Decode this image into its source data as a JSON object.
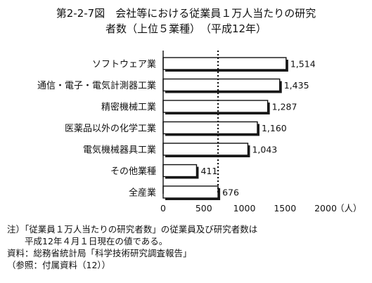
{
  "title_lines": [
    "第2-2-7図　会社等における従業員１万人当たりの研究",
    "者数（上位５業種）　（平成12年）"
  ],
  "chart_data": {
    "type": "bar",
    "orientation": "horizontal",
    "categories": [
      "ソフトウェア業",
      "通信・電子・電気計測器工業",
      "精密機械工業",
      "医薬品以外の化学工業",
      "電気機械器具工業",
      "その他業種",
      "全産業"
    ],
    "values": [
      1514,
      1435,
      1287,
      1160,
      1043,
      411,
      676
    ],
    "value_labels": [
      "1,514",
      "1,435",
      "1,287",
      "1,160",
      "1,043",
      "411",
      "676"
    ],
    "xlim": [
      0,
      2000
    ],
    "xticks": [
      0,
      500,
      1000,
      1500,
      2000
    ],
    "xtick_labels": [
      "0",
      "500",
      "1000",
      "1500",
      "2000"
    ],
    "xunit": "（人）",
    "reference_line": 676,
    "reference_style": "dotted"
  },
  "notes": [
    "注）「従業員１万人当たりの研究者数」の従業員及び研究者数は",
    "　　平成12年４月１日現在の値である。",
    "資料：総務省統計局「科学技術研究調査報告」",
    "（参照：付属資料（12））"
  ]
}
